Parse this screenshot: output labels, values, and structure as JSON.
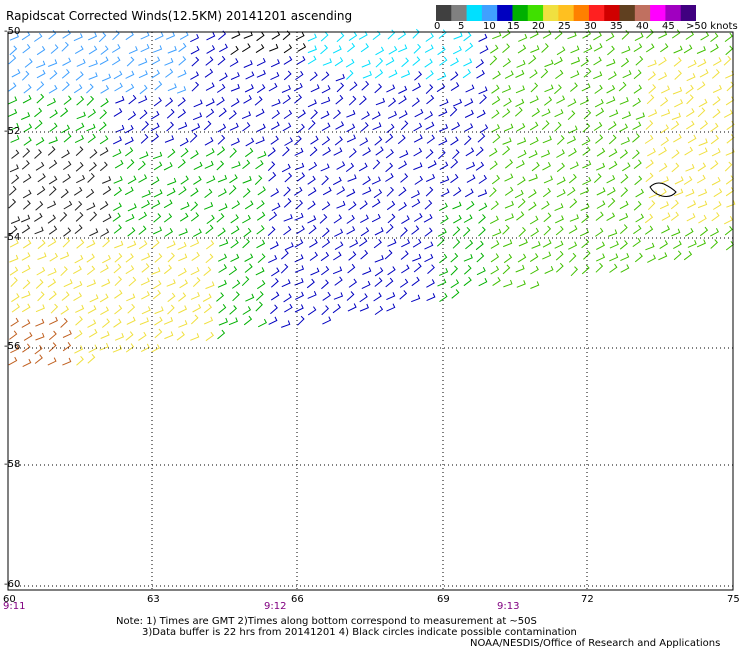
{
  "title": "Rapidscat Corrected Winds(12.5KM) 20141201 ascending",
  "colorbar": {
    "labels": [
      "0",
      "5",
      "10",
      "15",
      "20",
      "25",
      "30",
      "35",
      "40",
      "45",
      ">50 knots"
    ],
    "colors": [
      "#404040",
      "#808080",
      "#00e0ff",
      "#40a0ff",
      "#0000c0",
      "#00b000",
      "#40e000",
      "#f0e040",
      "#ffc020",
      "#ff8000",
      "#ff2020",
      "#d00000",
      "#604020",
      "#c07060",
      "#ff00ff",
      "#a000c0",
      "#400080"
    ]
  },
  "map": {
    "lat_labels": [
      "-50",
      "-52",
      "-54",
      "-56",
      "-58",
      "-60"
    ],
    "lon_labels": [
      "60",
      "63",
      "66",
      "69",
      "72",
      "75"
    ],
    "time_labels": [
      "9:11",
      "9:12",
      "9:13"
    ]
  },
  "notes": {
    "line1": "Note: 1) Times are GMT 2)Times along bottom correspond to measurement at ~50S",
    "line2": "3)Data buffer is 22 hrs from 20141201 4) Black circles indicate possible contamination",
    "line3": "NOAA/NESDIS/Office of Research and Applications"
  }
}
